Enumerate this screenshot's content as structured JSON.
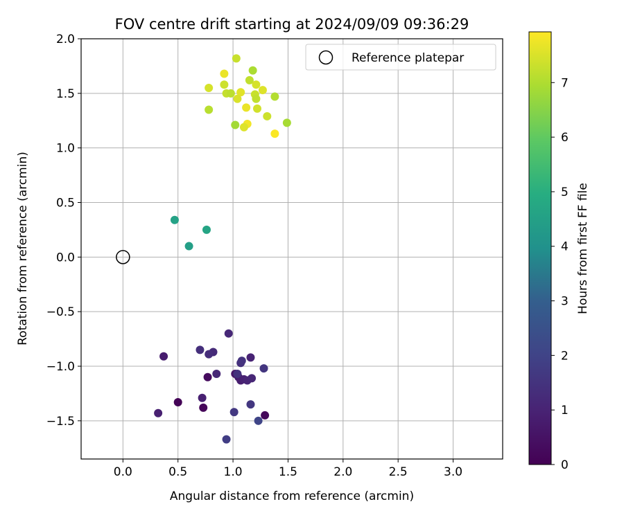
{
  "chart_data": {
    "type": "scatter",
    "title": "FOV centre drift starting at 2024/09/09 09:36:29",
    "xlabel": "Angular distance from reference (arcmin)",
    "ylabel": "Rotation from reference (arcmin)",
    "xlim": [
      -0.38,
      3.45
    ],
    "ylim": [
      -1.85,
      2.0
    ],
    "xticks": [
      0.0,
      0.5,
      1.0,
      1.5,
      2.0,
      2.5,
      3.0
    ],
    "xtick_labels": [
      "0.0",
      "0.5",
      "1.0",
      "1.5",
      "2.0",
      "2.5",
      "3.0"
    ],
    "yticks": [
      -1.5,
      -1.0,
      -0.5,
      0.0,
      0.5,
      1.0,
      1.5,
      2.0
    ],
    "ytick_labels": [
      "−1.5",
      "−1.0",
      "−0.5",
      "0.0",
      "0.5",
      "1.0",
      "1.5",
      "2.0"
    ],
    "grid": true,
    "legend": {
      "placement": "upper-right",
      "entries": [
        {
          "label": "Reference platepar",
          "marker": "open-circle"
        }
      ]
    },
    "reference_point": {
      "x": 0.0,
      "y": 0.0
    },
    "colorbar": {
      "label": "Hours from first FF file",
      "colormap": "viridis",
      "range": [
        0,
        7.93
      ],
      "ticks": [
        0,
        1,
        2,
        3,
        4,
        5,
        6,
        7
      ],
      "tick_labels": [
        "0",
        "1",
        "2",
        "3",
        "4",
        "5",
        "6",
        "7"
      ]
    },
    "points": [
      {
        "x": 0.5,
        "y": -1.33,
        "c": 0.05
      },
      {
        "x": 0.73,
        "y": -1.38,
        "c": 0.15
      },
      {
        "x": 1.29,
        "y": -1.45,
        "c": 0.2
      },
      {
        "x": 0.77,
        "y": -1.1,
        "c": 0.3
      },
      {
        "x": 0.37,
        "y": -0.91,
        "c": 0.8
      },
      {
        "x": 0.32,
        "y": -1.43,
        "c": 0.9
      },
      {
        "x": 0.72,
        "y": -1.29,
        "c": 0.9
      },
      {
        "x": 1.02,
        "y": -1.07,
        "c": 0.6
      },
      {
        "x": 1.05,
        "y": -1.1,
        "c": 0.75
      },
      {
        "x": 1.07,
        "y": -1.13,
        "c": 0.85
      },
      {
        "x": 1.1,
        "y": -1.12,
        "c": 0.95
      },
      {
        "x": 1.13,
        "y": -1.13,
        "c": 1.05
      },
      {
        "x": 1.17,
        "y": -1.11,
        "c": 1.1
      },
      {
        "x": 1.16,
        "y": -0.92,
        "c": 1.0
      },
      {
        "x": 0.96,
        "y": -0.7,
        "c": 1.15
      },
      {
        "x": 0.85,
        "y": -1.07,
        "c": 1.1
      },
      {
        "x": 0.82,
        "y": -0.87,
        "c": 1.2
      },
      {
        "x": 0.78,
        "y": -0.89,
        "c": 1.3
      },
      {
        "x": 0.7,
        "y": -0.85,
        "c": 1.35
      },
      {
        "x": 1.07,
        "y": -0.97,
        "c": 1.4
      },
      {
        "x": 1.08,
        "y": -0.95,
        "c": 1.5
      },
      {
        "x": 1.04,
        "y": -1.07,
        "c": 1.45
      },
      {
        "x": 1.28,
        "y": -1.02,
        "c": 1.55
      },
      {
        "x": 1.16,
        "y": -1.35,
        "c": 1.6
      },
      {
        "x": 1.01,
        "y": -1.42,
        "c": 1.65
      },
      {
        "x": 0.94,
        "y": -1.67,
        "c": 1.8
      },
      {
        "x": 1.23,
        "y": -1.5,
        "c": 2.05
      },
      {
        "x": 0.6,
        "y": 0.1,
        "c": 4.45
      },
      {
        "x": 0.47,
        "y": 0.34,
        "c": 4.55
      },
      {
        "x": 0.76,
        "y": 0.25,
        "c": 4.65
      },
      {
        "x": 1.03,
        "y": 1.82,
        "c": 7.3
      },
      {
        "x": 1.18,
        "y": 1.71,
        "c": 6.95
      },
      {
        "x": 0.92,
        "y": 1.68,
        "c": 7.7
      },
      {
        "x": 1.15,
        "y": 1.62,
        "c": 7.2
      },
      {
        "x": 1.21,
        "y": 1.58,
        "c": 7.45
      },
      {
        "x": 0.92,
        "y": 1.58,
        "c": 7.35
      },
      {
        "x": 0.78,
        "y": 1.55,
        "c": 7.45
      },
      {
        "x": 1.27,
        "y": 1.53,
        "c": 7.55
      },
      {
        "x": 1.07,
        "y": 1.51,
        "c": 7.6
      },
      {
        "x": 0.94,
        "y": 1.5,
        "c": 7.25
      },
      {
        "x": 0.98,
        "y": 1.5,
        "c": 7.15
      },
      {
        "x": 1.2,
        "y": 1.49,
        "c": 7.3
      },
      {
        "x": 1.38,
        "y": 1.47,
        "c": 7.05
      },
      {
        "x": 1.04,
        "y": 1.45,
        "c": 7.5
      },
      {
        "x": 1.21,
        "y": 1.45,
        "c": 7.2
      },
      {
        "x": 1.12,
        "y": 1.37,
        "c": 7.7
      },
      {
        "x": 1.22,
        "y": 1.36,
        "c": 7.4
      },
      {
        "x": 0.78,
        "y": 1.35,
        "c": 7.1
      },
      {
        "x": 1.31,
        "y": 1.29,
        "c": 7.35
      },
      {
        "x": 1.49,
        "y": 1.23,
        "c": 6.9
      },
      {
        "x": 1.13,
        "y": 1.22,
        "c": 7.8
      },
      {
        "x": 1.02,
        "y": 1.21,
        "c": 6.85
      },
      {
        "x": 1.1,
        "y": 1.19,
        "c": 7.55
      },
      {
        "x": 1.38,
        "y": 1.13,
        "c": 7.9
      }
    ]
  }
}
